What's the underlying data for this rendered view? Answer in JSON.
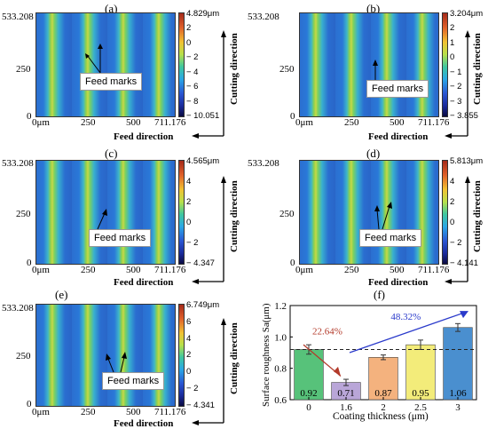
{
  "panels": [
    {
      "label": "(a)",
      "y_top": "533.208",
      "y_mid": "250",
      "origin": "0",
      "x0": "0μm",
      "x1": "250",
      "x2": "500",
      "x3": "711.176",
      "cbar_ticks": [
        "4.829μm",
        "2",
        "0",
        "− 2",
        "− 4",
        "− 6",
        "− 8",
        "− 10.051"
      ],
      "annotation": "Feed marks"
    },
    {
      "label": "(b)",
      "y_top": "533.208",
      "y_mid": "250",
      "origin": "0",
      "x0": "0μm",
      "x1": "250",
      "x2": "500",
      "x3": "711.176",
      "cbar_ticks": [
        "3.204μm",
        "2",
        "1",
        "0",
        "− 1",
        "− 2",
        "− 3",
        "− 3.855"
      ],
      "annotation": "Feed marks"
    },
    {
      "label": "(c)",
      "y_top": "533.208",
      "y_mid": "250",
      "origin": "0",
      "x0": "0μm",
      "x1": "250",
      "x2": "500",
      "x3": "711.176",
      "cbar_ticks": [
        "4.565μm",
        "4",
        "2",
        "0",
        "− 2",
        "− 4.347"
      ],
      "annotation": "Feed marks"
    },
    {
      "label": "(d)",
      "y_top": "533.208",
      "y_mid": "250",
      "origin": "0",
      "x0": "0μm",
      "x1": "250",
      "x2": "500",
      "x3": "711.176",
      "cbar_ticks": [
        "5.813μm",
        "4",
        "2",
        "0",
        "− 2",
        "− 4.141"
      ],
      "annotation": "Feed marks"
    },
    {
      "label": "(e)",
      "y_top": "533.208",
      "y_mid": "250",
      "origin": "0",
      "x0": "0μm",
      "x1": "250",
      "x2": "500",
      "x3": "711.176",
      "cbar_ticks": [
        "6.749μm",
        "6",
        "4",
        "2",
        "0",
        "− 2",
        "− 4.341"
      ],
      "annotation": "Feed marks"
    }
  ],
  "axis_titles": {
    "feed": "Feed direction",
    "cutting": "Cutting direction"
  },
  "chart_data": {
    "type": "bar",
    "panel_label": "(f)",
    "categories": [
      "0",
      "1.6",
      "2",
      "2.5",
      "3"
    ],
    "values": [
      0.92,
      0.71,
      0.87,
      0.95,
      1.06
    ],
    "value_labels": [
      "0.92",
      "0.71",
      "0.87",
      "0.95",
      "1.06"
    ],
    "errors": [
      0.03,
      0.02,
      0.015,
      0.03,
      0.025
    ],
    "colors": [
      "#57c27a",
      "#b9a6d8",
      "#f4b27e",
      "#f3ec7a",
      "#4a8fcf"
    ],
    "ylim": [
      0.6,
      1.2
    ],
    "yticks": [
      "0.6",
      "0.8",
      "1.0",
      "1.2"
    ],
    "reference_line": 0.92,
    "xlabel": "Coating thickness (μm)",
    "ylabel": "Surface roughness Sa(μm)",
    "annotations": [
      {
        "text": "22.64%",
        "color": "#b33a2a"
      },
      {
        "text": "48.32%",
        "color": "#2a3acb"
      }
    ]
  }
}
